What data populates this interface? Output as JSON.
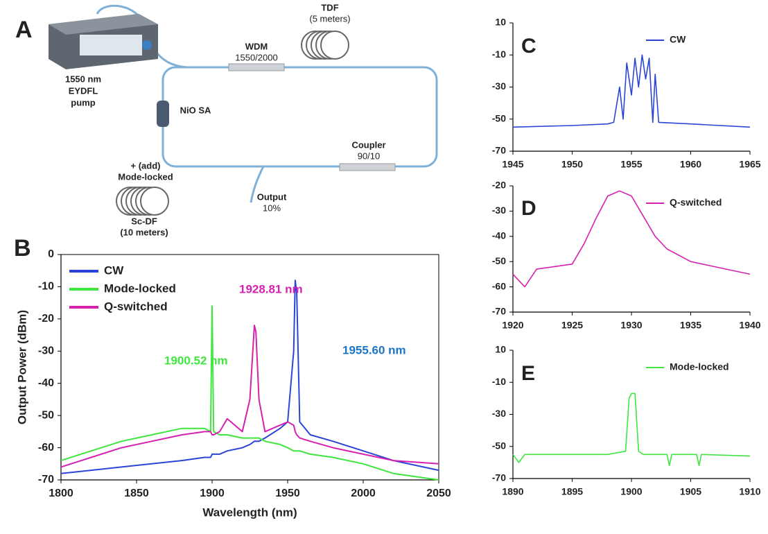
{
  "diagram": {
    "panel": "A",
    "pump_label": [
      "1550 nm",
      "EYDFL",
      "pump"
    ],
    "wdm_label": [
      "WDM",
      "1550/2000"
    ],
    "tdf_label": [
      "TDF",
      "(5 meters)"
    ],
    "sa_label": "NiO SA",
    "coupler_label": [
      "Coupler",
      "90/10"
    ],
    "output_label": [
      "Output",
      "10%"
    ],
    "add_label": [
      "+ (add)",
      "Mode-locked"
    ],
    "scdf_label": [
      "Sc-DF",
      "(10 meters)"
    ]
  },
  "chart_data": [
    {
      "type": "line",
      "panel": "B",
      "x_label": "Wavelength (nm)",
      "y_label": "Output Power (dBm)",
      "x": [
        1800,
        1820,
        1840,
        1860,
        1880,
        1895,
        1899,
        1900,
        1901,
        1905,
        1910,
        1920,
        1925,
        1928,
        1929,
        1931,
        1935,
        1945,
        1950,
        1954,
        1955,
        1956,
        1958,
        1965,
        1980,
        2000,
        2020,
        2050
      ],
      "series": [
        {
          "name": "CW",
          "color": "#2a45d6",
          "values": [
            -68,
            -67,
            -66,
            -65,
            -64,
            -63,
            -63,
            -62,
            -62,
            -62,
            -61,
            -60,
            -59,
            -58,
            -58,
            -58,
            -57,
            -54,
            -52,
            -30,
            -8,
            -12,
            -52,
            -56,
            -58,
            -61,
            -64,
            -67
          ]
        },
        {
          "name": "Mode-locked",
          "color": "#3ee63e",
          "values": [
            -64,
            -61,
            -58,
            -56,
            -54,
            -54,
            -55,
            -16,
            -55,
            -56,
            -56,
            -57,
            -57,
            -57,
            -57,
            -57,
            -58,
            -59,
            -60,
            -61,
            -61,
            -61,
            -61,
            -62,
            -63,
            -65,
            -68,
            -70
          ]
        },
        {
          "name": "Q-switched",
          "color": "#d620b0",
          "values": [
            -66,
            -63,
            -60,
            -58,
            -56,
            -55,
            -55,
            -56,
            -56,
            -55,
            -51,
            -55,
            -45,
            -22,
            -24,
            -45,
            -55,
            -53,
            -52,
            -53,
            -55,
            -56,
            -57,
            -58,
            -60,
            -62,
            -64,
            -65
          ]
        }
      ],
      "annotations": [
        {
          "text": "1928.81 nm",
          "color": "#d620b0"
        },
        {
          "text": "1900.52 nm",
          "color": "#3ee63e"
        },
        {
          "text": "1955.60 nm",
          "color": "#1a75c4"
        }
      ],
      "xlim": [
        1800,
        2050
      ],
      "xticks": [
        1800,
        1850,
        1900,
        1950,
        2000,
        2050
      ],
      "ylim": [
        -70,
        0
      ],
      "yticks": [
        -70,
        -60,
        -50,
        -40,
        -30,
        -20,
        -10,
        0
      ],
      "legend": "upper left"
    },
    {
      "type": "line",
      "panel": "C",
      "x": [
        1945,
        1950,
        1953,
        1953.5,
        1954,
        1954.3,
        1954.6,
        1955,
        1955.3,
        1955.6,
        1955.9,
        1956.2,
        1956.5,
        1956.8,
        1957,
        1957.3,
        1960,
        1965
      ],
      "series": [
        {
          "name": "CW",
          "color": "#2a45d6",
          "values": [
            -55,
            -54,
            -53,
            -52,
            -30,
            -50,
            -15,
            -35,
            -12,
            -30,
            -10,
            -25,
            -12,
            -52,
            -22,
            -52,
            -53,
            -55
          ]
        }
      ],
      "xlim": [
        1945,
        1965
      ],
      "xticks": [
        1945,
        1950,
        1955,
        1960,
        1965
      ],
      "ylim": [
        -70,
        10
      ],
      "yticks": [
        -70,
        -50,
        -30,
        -10,
        10
      ],
      "legend": "upper right"
    },
    {
      "type": "line",
      "panel": "D",
      "x": [
        1920,
        1921,
        1922,
        1925,
        1926,
        1927,
        1928,
        1929,
        1930,
        1931,
        1932,
        1933,
        1935,
        1937,
        1940
      ],
      "series": [
        {
          "name": "Q-switched",
          "color": "#d620b0",
          "values": [
            -55,
            -60,
            -53,
            -51,
            -43,
            -33,
            -24,
            -22,
            -24,
            -32,
            -40,
            -45,
            -50,
            -52,
            -55
          ]
        }
      ],
      "xlim": [
        1920,
        1940
      ],
      "xticks": [
        1920,
        1925,
        1930,
        1935,
        1940
      ],
      "ylim": [
        -70,
        -20
      ],
      "yticks": [
        -70,
        -60,
        -50,
        -40,
        -30,
        -20
      ],
      "legend": "upper right"
    },
    {
      "type": "line",
      "panel": "E",
      "x": [
        1890,
        1890.5,
        1891,
        1898,
        1899.5,
        1899.8,
        1900,
        1900.3,
        1900.6,
        1901,
        1903,
        1903.2,
        1903.4,
        1905.5,
        1905.7,
        1905.9,
        1910
      ],
      "series": [
        {
          "name": "Mode-locked",
          "color": "#3ee63e",
          "values": [
            -55,
            -60,
            -55,
            -55,
            -53,
            -20,
            -17,
            -17,
            -53,
            -55,
            -55,
            -62,
            -55,
            -55,
            -62,
            -55,
            -56
          ]
        }
      ],
      "xlim": [
        1890,
        1910
      ],
      "xticks": [
        1890,
        1895,
        1900,
        1905,
        1910
      ],
      "ylim": [
        -70,
        10
      ],
      "yticks": [
        -70,
        -50,
        -30,
        -10,
        10
      ],
      "legend": "upper right"
    }
  ]
}
